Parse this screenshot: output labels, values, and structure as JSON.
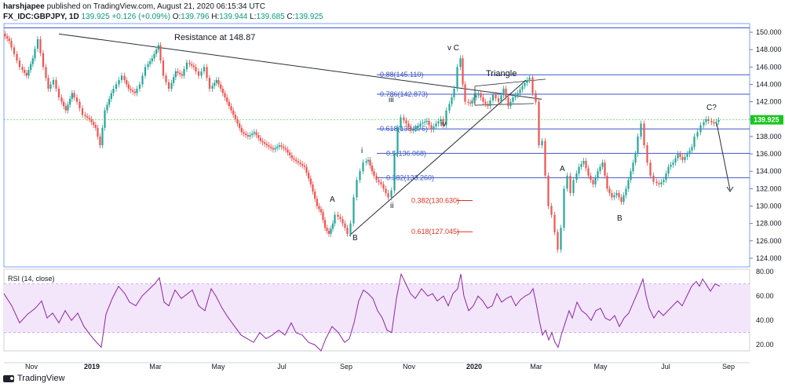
{
  "header": {
    "line1_user": "harshjapee",
    "line1_rest": "published on TradingView.com, August 21, 2020 06:15:34 UTC",
    "symbol": "FX_IDC:GBPJPY, 1D",
    "last": "139.925",
    "change": "+0.126 (+0.09%)",
    "o_label": "O:",
    "o": "139.796",
    "h_label": "H:",
    "h": "139.944",
    "l_label": "L:",
    "l": "139.685",
    "c_label": "C:",
    "c": "139.925"
  },
  "footer": {
    "brand": "TradingView"
  },
  "chart_data": [
    {
      "type": "candlestick",
      "symbol": "FX_IDC:GBPJPY",
      "interval": "1D",
      "x_ticks": [
        "Nov",
        "2019",
        "Mar",
        "May",
        "Jul",
        "Sep",
        "Nov",
        "2020",
        "Mar",
        "May",
        "Jul",
        "Sep"
      ],
      "y_ticks": [
        "124.000",
        "126.000",
        "128.000",
        "130.000",
        "132.000",
        "134.000",
        "136.000",
        "138.000",
        "140.000",
        "142.000",
        "144.000",
        "146.000",
        "148.000",
        "150.000"
      ],
      "ylim": [
        123,
        151
      ],
      "last_price_label": "139.925",
      "last_price": 139.925,
      "price_path": [
        [
          0,
          149.8
        ],
        [
          8,
          149
        ],
        [
          15,
          147.5
        ],
        [
          22,
          146
        ],
        [
          30,
          145
        ],
        [
          38,
          147
        ],
        [
          45,
          149.2
        ],
        [
          52,
          146
        ],
        [
          58,
          143.5
        ],
        [
          65,
          144.5
        ],
        [
          72,
          142.5
        ],
        [
          80,
          141
        ],
        [
          88,
          143
        ],
        [
          95,
          142
        ],
        [
          102,
          140.5
        ],
        [
          110,
          140
        ],
        [
          118,
          139
        ],
        [
          124,
          137
        ],
        [
          130,
          141
        ],
        [
          138,
          143
        ],
        [
          145,
          144
        ],
        [
          152,
          145
        ],
        [
          160,
          143.5
        ],
        [
          168,
          143
        ],
        [
          175,
          144
        ],
        [
          182,
          146
        ],
        [
          190,
          147
        ],
        [
          198,
          148.5
        ],
        [
          205,
          145
        ],
        [
          212,
          143.5
        ],
        [
          220,
          145.5
        ],
        [
          228,
          145
        ],
        [
          235,
          146.5
        ],
        [
          243,
          146
        ],
        [
          250,
          145
        ],
        [
          257,
          146
        ],
        [
          264,
          143.5
        ],
        [
          272,
          144.5
        ],
        [
          280,
          143
        ],
        [
          288,
          141.5
        ],
        [
          296,
          140
        ],
        [
          304,
          138.5
        ],
        [
          312,
          138
        ],
        [
          320,
          138.5
        ],
        [
          328,
          137.5
        ],
        [
          336,
          137
        ],
        [
          344,
          136.5
        ],
        [
          352,
          137
        ],
        [
          360,
          136.5
        ],
        [
          368,
          135.5
        ],
        [
          376,
          135
        ],
        [
          384,
          134.5
        ],
        [
          392,
          132.5
        ],
        [
          400,
          130
        ],
        [
          405,
          129.3
        ],
        [
          410,
          127.5
        ],
        [
          415,
          126.8
        ],
        [
          420,
          128
        ],
        [
          424,
          129
        ],
        [
          430,
          128.5
        ],
        [
          436,
          127.5
        ],
        [
          440,
          126.8
        ],
        [
          444,
          128
        ],
        [
          448,
          131
        ],
        [
          452,
          133
        ],
        [
          456,
          134
        ],
        [
          460,
          135
        ],
        [
          465,
          135.3
        ],
        [
          470,
          134
        ],
        [
          476,
          133
        ],
        [
          482,
          132.5
        ],
        [
          488,
          131.5
        ],
        [
          492,
          131
        ],
        [
          496,
          131.8
        ],
        [
          500,
          136
        ],
        [
          504,
          139
        ],
        [
          508,
          140.2
        ],
        [
          514,
          139.5
        ],
        [
          520,
          138.7
        ],
        [
          526,
          139
        ],
        [
          532,
          139.5
        ],
        [
          540,
          139.8
        ],
        [
          546,
          138.8
        ],
        [
          552,
          139.5
        ],
        [
          558,
          140
        ],
        [
          562,
          139.3
        ],
        [
          566,
          141
        ],
        [
          572,
          142.5
        ],
        [
          576,
          143.5
        ],
        [
          580,
          146
        ],
        [
          583,
          147
        ],
        [
          586,
          144
        ],
        [
          590,
          142
        ],
        [
          595,
          141.8
        ],
        [
          600,
          142.5
        ],
        [
          606,
          143
        ],
        [
          612,
          142
        ],
        [
          618,
          141.5
        ],
        [
          625,
          142.8
        ],
        [
          632,
          142
        ],
        [
          638,
          143.5
        ],
        [
          644,
          141.5
        ],
        [
          650,
          142.5
        ],
        [
          656,
          143
        ],
        [
          662,
          143.8
        ],
        [
          668,
          144.5
        ],
        [
          672,
          144.8
        ],
        [
          676,
          143
        ],
        [
          680,
          142
        ],
        [
          684,
          137
        ],
        [
          688,
          137.5
        ],
        [
          692,
          133.5
        ],
        [
          696,
          130
        ],
        [
          700,
          129
        ],
        [
          704,
          127
        ],
        [
          708,
          125
        ],
        [
          712,
          127.5
        ],
        [
          716,
          132
        ],
        [
          720,
          133.5
        ],
        [
          724,
          131.5
        ],
        [
          728,
          133
        ],
        [
          734,
          134.5
        ],
        [
          740,
          135.2
        ],
        [
          746,
          133.5
        ],
        [
          752,
          132.5
        ],
        [
          758,
          134
        ],
        [
          764,
          135
        ],
        [
          770,
          132
        ],
        [
          776,
          131
        ],
        [
          782,
          131.5
        ],
        [
          788,
          130.5
        ],
        [
          794,
          132
        ],
        [
          800,
          134
        ],
        [
          806,
          136
        ],
        [
          810,
          138
        ],
        [
          814,
          139.5
        ],
        [
          818,
          137
        ],
        [
          822,
          135
        ],
        [
          826,
          133.5
        ],
        [
          830,
          132.8
        ],
        [
          836,
          132.5
        ],
        [
          842,
          133
        ],
        [
          848,
          134.5
        ],
        [
          854,
          135
        ],
        [
          860,
          136
        ],
        [
          866,
          135.3
        ],
        [
          872,
          136
        ],
        [
          878,
          136.8
        ],
        [
          882,
          138
        ],
        [
          886,
          138.5
        ],
        [
          890,
          139.3
        ],
        [
          896,
          140
        ],
        [
          900,
          139.8
        ],
        [
          906,
          139.5
        ],
        [
          912,
          139.9
        ]
      ],
      "annotations": {
        "resistance": "Resistance at 148.87",
        "fib": [
          {
            "label": "0.88(145.110)",
            "value": 145.11
          },
          {
            "label": "0.786(142.873)",
            "value": 142.873
          },
          {
            "label": "0.618(138.876)",
            "value": 138.876
          },
          {
            "label": "0.5(136.068)",
            "value": 136.068
          },
          {
            "label": "0.382(133.260)",
            "value": 133.26
          }
        ],
        "red_levels": [
          {
            "label": "0.382(130.630)",
            "value": 130.63
          },
          {
            "label": "0.618(127.045)",
            "value": 127.045
          }
        ],
        "waves": [
          "A",
          "B",
          "i",
          "ii",
          "iii",
          "iv",
          "v C",
          "A",
          "B",
          "C?"
        ],
        "pattern": "Triangle"
      }
    },
    {
      "type": "line",
      "indicator": "RSI (14, close)",
      "y_ticks": [
        "20.00",
        "40.00",
        "60.00",
        "80.00"
      ],
      "ylim": [
        15,
        82
      ],
      "band": [
        30,
        70
      ],
      "rsi_path": [
        [
          0,
          62
        ],
        [
          10,
          52
        ],
        [
          20,
          38
        ],
        [
          30,
          45
        ],
        [
          40,
          50
        ],
        [
          48,
          56
        ],
        [
          55,
          42
        ],
        [
          62,
          46
        ],
        [
          70,
          38
        ],
        [
          78,
          48
        ],
        [
          86,
          40
        ],
        [
          94,
          46
        ],
        [
          102,
          35
        ],
        [
          110,
          28
        ],
        [
          118,
          22
        ],
        [
          124,
          18
        ],
        [
          130,
          45
        ],
        [
          138,
          58
        ],
        [
          146,
          68
        ],
        [
          154,
          62
        ],
        [
          160,
          55
        ],
        [
          168,
          52
        ],
        [
          176,
          60
        ],
        [
          184,
          65
        ],
        [
          192,
          70
        ],
        [
          198,
          75
        ],
        [
          204,
          55
        ],
        [
          210,
          52
        ],
        [
          218,
          65
        ],
        [
          226,
          58
        ],
        [
          234,
          62
        ],
        [
          240,
          65
        ],
        [
          248,
          52
        ],
        [
          256,
          48
        ],
        [
          264,
          66
        ],
        [
          270,
          60
        ],
        [
          278,
          50
        ],
        [
          286,
          42
        ],
        [
          294,
          35
        ],
        [
          302,
          28
        ],
        [
          310,
          25
        ],
        [
          318,
          22
        ],
        [
          326,
          30
        ],
        [
          334,
          25
        ],
        [
          342,
          28
        ],
        [
          350,
          32
        ],
        [
          358,
          28
        ],
        [
          366,
          38
        ],
        [
          372,
          30
        ],
        [
          380,
          28
        ],
        [
          388,
          22
        ],
        [
          396,
          20
        ],
        [
          404,
          15
        ],
        [
          410,
          25
        ],
        [
          418,
          35
        ],
        [
          426,
          30
        ],
        [
          434,
          22
        ],
        [
          440,
          25
        ],
        [
          446,
          38
        ],
        [
          452,
          56
        ],
        [
          458,
          65
        ],
        [
          464,
          62
        ],
        [
          470,
          58
        ],
        [
          476,
          48
        ],
        [
          482,
          42
        ],
        [
          488,
          32
        ],
        [
          494,
          30
        ],
        [
          500,
          58
        ],
        [
          506,
          78
        ],
        [
          512,
          70
        ],
        [
          518,
          62
        ],
        [
          524,
          58
        ],
        [
          532,
          66
        ],
        [
          540,
          60
        ],
        [
          546,
          62
        ],
        [
          552,
          56
        ],
        [
          560,
          60
        ],
        [
          566,
          52
        ],
        [
          572,
          62
        ],
        [
          578,
          66
        ],
        [
          582,
          78
        ],
        [
          586,
          60
        ],
        [
          592,
          48
        ],
        [
          598,
          52
        ],
        [
          604,
          60
        ],
        [
          610,
          56
        ],
        [
          616,
          50
        ],
        [
          622,
          52
        ],
        [
          628,
          62
        ],
        [
          634,
          55
        ],
        [
          640,
          58
        ],
        [
          646,
          60
        ],
        [
          652,
          52
        ],
        [
          658,
          57
        ],
        [
          664,
          60
        ],
        [
          670,
          62
        ],
        [
          674,
          66
        ],
        [
          678,
          54
        ],
        [
          682,
          40
        ],
        [
          686,
          28
        ],
        [
          690,
          32
        ],
        [
          694,
          24
        ],
        [
          698,
          30
        ],
        [
          702,
          22
        ],
        [
          706,
          18
        ],
        [
          710,
          28
        ],
        [
          716,
          40
        ],
        [
          720,
          48
        ],
        [
          724,
          42
        ],
        [
          730,
          55
        ],
        [
          736,
          48
        ],
        [
          742,
          45
        ],
        [
          748,
          40
        ],
        [
          754,
          48
        ],
        [
          760,
          50
        ],
        [
          766,
          42
        ],
        [
          772,
          40
        ],
        [
          778,
          44
        ],
        [
          784,
          35
        ],
        [
          790,
          42
        ],
        [
          796,
          46
        ],
        [
          802,
          55
        ],
        [
          808,
          64
        ],
        [
          814,
          74
        ],
        [
          818,
          60
        ],
        [
          822,
          50
        ],
        [
          828,
          42
        ],
        [
          834,
          48
        ],
        [
          840,
          44
        ],
        [
          846,
          48
        ],
        [
          852,
          52
        ],
        [
          858,
          56
        ],
        [
          864,
          52
        ],
        [
          870,
          60
        ],
        [
          876,
          68
        ],
        [
          882,
          72
        ],
        [
          886,
          68
        ],
        [
          890,
          74
        ],
        [
          894,
          70
        ],
        [
          900,
          64
        ],
        [
          906,
          70
        ],
        [
          912,
          68
        ]
      ]
    }
  ],
  "colors": {
    "up": "#26a69a",
    "down": "#ef5350",
    "fib": "#3d56c4",
    "red_level": "#e0301e",
    "rsi_line": "#8e24aa",
    "rsi_band": "#f3e6fb",
    "last_price": "#19c51e"
  }
}
